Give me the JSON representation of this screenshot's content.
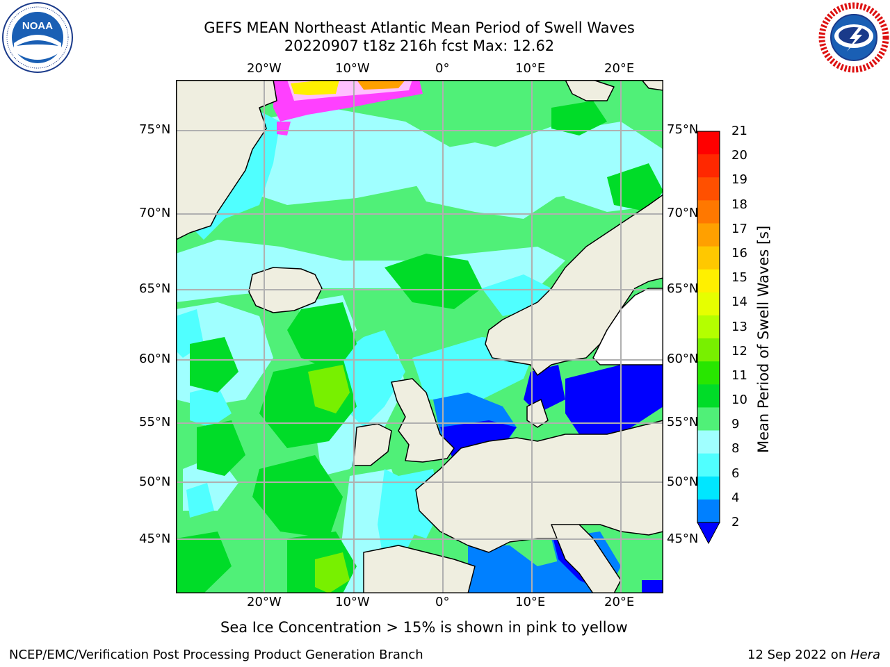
{
  "title_line1": "GEFS MEAN Northeast Atlantic Mean Period of Swell Waves",
  "title_line2": "20220907 t18z 216h fcst   Max: 12.62",
  "logos": {
    "left": "NOAA",
    "left_ring_text": "NATIONAL OCEANIC AND ATMOSPHERIC ADMINISTRATION · U.S. DEPARTMENT OF COMMERCE",
    "right_ring_text": "NATIONAL WEATHER SERVICE"
  },
  "map": {
    "lon_labels": [
      "20°W",
      "10°W",
      "0°",
      "10°E",
      "20°E"
    ],
    "lat_labels": [
      "75°N",
      "70°N",
      "65°N",
      "60°N",
      "55°N",
      "50°N",
      "45°N"
    ],
    "lat_labels_right": [
      "75°N",
      "70°N",
      "65°N",
      "60°N",
      "55°N",
      "50°N",
      "45°N"
    ]
  },
  "colorbar": {
    "title": "Mean Period of Swell Waves [s]",
    "ticks": [
      "21",
      "20",
      "19",
      "18",
      "17",
      "16",
      "15",
      "14",
      "13",
      "12",
      "11",
      "10",
      "9",
      "8",
      "6",
      "4",
      "2"
    ],
    "colors": [
      "#ff0000",
      "#ff2800",
      "#ff5000",
      "#ff7800",
      "#ffa000",
      "#ffc800",
      "#fff000",
      "#e6ff00",
      "#b4ff00",
      "#78f000",
      "#28e600",
      "#00dc28",
      "#50f078",
      "#a0ffff",
      "#50ffff",
      "#00e6ff",
      "#0080ff",
      "#0000ff"
    ],
    "extend_color": "#0000ff"
  },
  "caption": "Sea Ice Concentration > 15% is shown in pink to yellow",
  "footer_left": "NCEP/EMC/Verification Post Processing Product Generation Branch",
  "footer_right_date": "12 Sep 2022 on ",
  "footer_right_host": "Hera"
}
